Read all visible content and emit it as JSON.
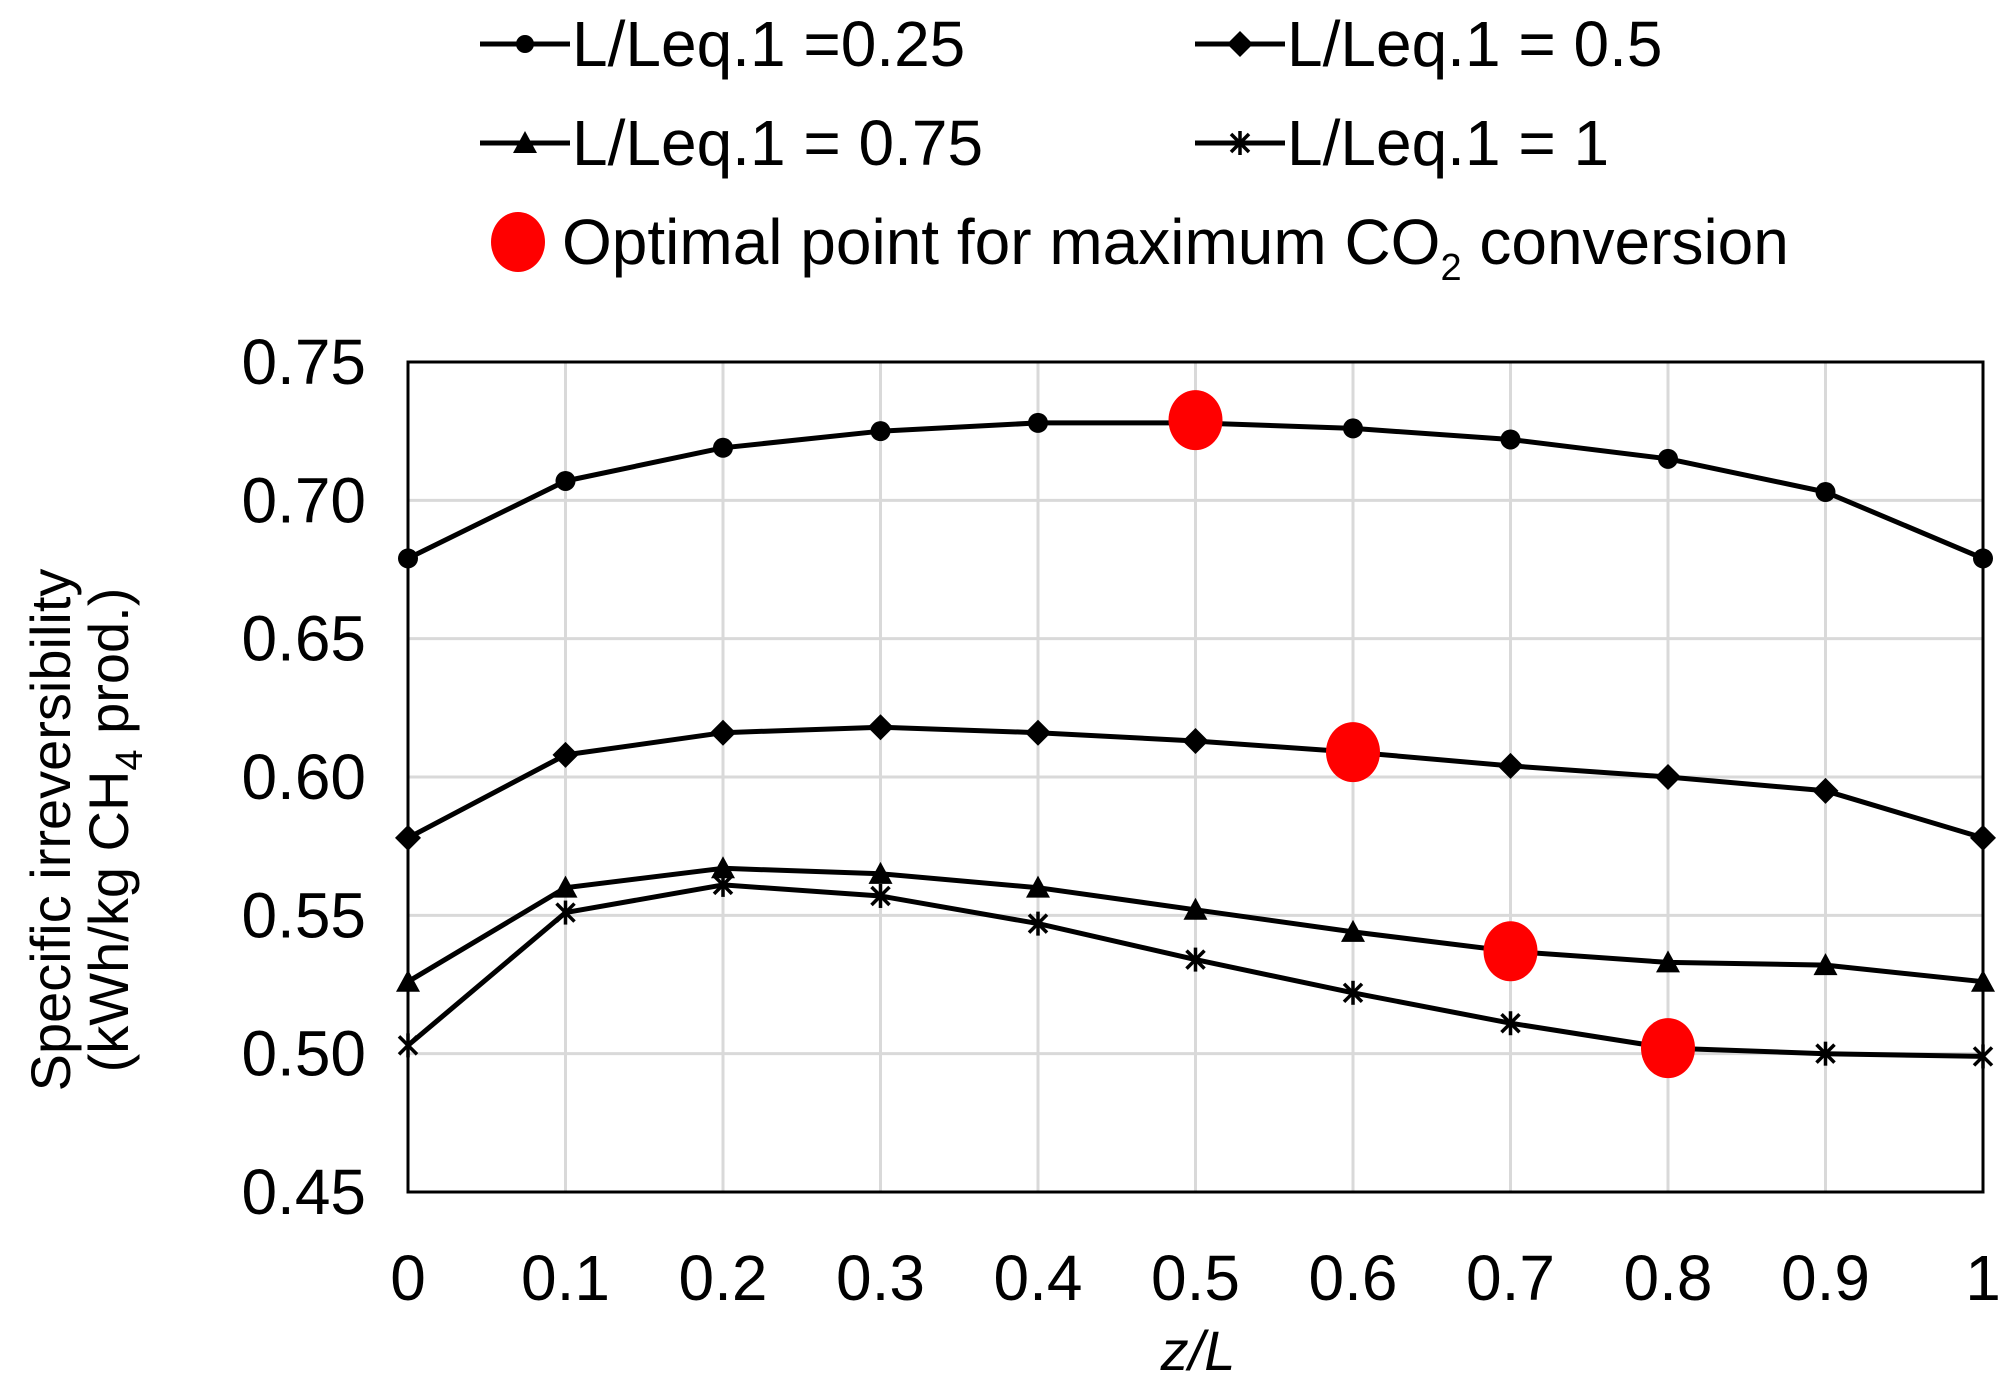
{
  "chart_data": {
    "type": "line",
    "xlabel": "z/L",
    "ylabel_line1": "Specific irreversibility",
    "ylabel_line2_pre": "(kWh/kg CH",
    "ylabel_line2_sub": "4",
    "ylabel_line2_post": " prod.)",
    "x": [
      0,
      0.1,
      0.2,
      0.3,
      0.4,
      0.5,
      0.6,
      0.7,
      0.8,
      0.9,
      1
    ],
    "x_tick_labels": [
      "0",
      "0.1",
      "0.2",
      "0.3",
      "0.4",
      "0.5",
      "0.6",
      "0.7",
      "0.8",
      "0.9",
      "1"
    ],
    "ylim": [
      0.45,
      0.75
    ],
    "y_ticks": [
      0.45,
      0.5,
      0.55,
      0.6,
      0.65,
      0.7,
      0.75
    ],
    "y_tick_labels": [
      "0.45",
      "0.50",
      "0.55",
      "0.60",
      "0.65",
      "0.70",
      "0.75"
    ],
    "grid": true,
    "legend_position": "top",
    "series": [
      {
        "name": "L/Leq.1 =0.25",
        "marker": "circle",
        "values": [
          0.679,
          0.707,
          0.719,
          0.725,
          0.728,
          0.728,
          0.726,
          0.722,
          0.715,
          0.703,
          0.679
        ]
      },
      {
        "name": "L/Leq.1 = 0.5",
        "marker": "diamond",
        "values": [
          0.578,
          0.608,
          0.616,
          0.618,
          0.616,
          0.613,
          0.609,
          0.604,
          0.6,
          0.595,
          0.578
        ]
      },
      {
        "name": "L/Leq.1 = 0.75",
        "marker": "triangle",
        "values": [
          0.526,
          0.56,
          0.567,
          0.565,
          0.56,
          0.552,
          0.544,
          0.537,
          0.533,
          0.532,
          0.526
        ]
      },
      {
        "name": "L/Leq.1 = 1",
        "marker": "star",
        "values": [
          0.503,
          0.551,
          0.561,
          0.557,
          0.547,
          0.534,
          0.522,
          0.511,
          0.502,
          0.5,
          0.499
        ]
      }
    ],
    "optimal_points": {
      "label_pre": "Optimal point for maximum CO",
      "label_sub": "2",
      "label_post": " conversion",
      "color": "#ff0000",
      "points": [
        {
          "x": 0.5,
          "y": 0.729
        },
        {
          "x": 0.6,
          "y": 0.609
        },
        {
          "x": 0.7,
          "y": 0.537
        },
        {
          "x": 0.8,
          "y": 0.502
        }
      ]
    },
    "line_color": "#000000",
    "grid_color": "#d9d9d9"
  }
}
